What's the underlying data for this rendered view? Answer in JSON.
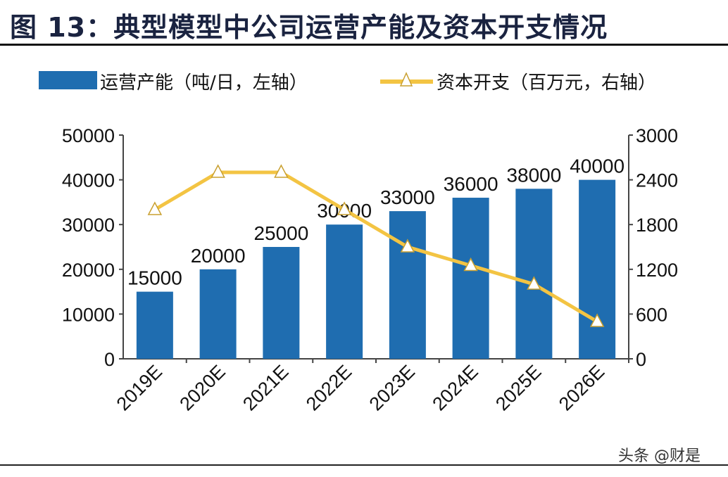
{
  "title": "图 13：典型模型中公司运营产能及资本开支情况",
  "watermark": "头条 @财是",
  "chart_data": {
    "type": "bar",
    "categories": [
      "2019E",
      "2020E",
      "2021E",
      "2022E",
      "2023E",
      "2024E",
      "2025E",
      "2026E"
    ],
    "series": [
      {
        "name": "运营产能（吨/日，左轴）",
        "type": "bar",
        "axis": "left",
        "color": "#1f6db0",
        "values": [
          15000,
          20000,
          25000,
          30000,
          33000,
          36000,
          38000,
          40000
        ]
      },
      {
        "name": "资本开支（百万元，右轴）",
        "type": "line",
        "axis": "right",
        "color": "#f3c443",
        "marker": "triangle",
        "values": [
          2000,
          2500,
          2500,
          2000,
          1500,
          1250,
          1000,
          500
        ]
      }
    ],
    "y_left": {
      "range": [
        0,
        50000
      ],
      "ticks": [
        "0",
        "10000",
        "20000",
        "30000",
        "40000",
        "50000"
      ]
    },
    "y_right": {
      "range": [
        0,
        3000
      ],
      "ticks": [
        "0",
        "600",
        "1200",
        "1800",
        "2400",
        "3000"
      ]
    },
    "legend": "top",
    "grid": false
  }
}
